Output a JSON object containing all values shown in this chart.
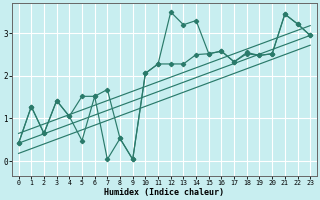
{
  "xlabel": "Humidex (Indice chaleur)",
  "bg_color": "#c8eef0",
  "grid_color": "#ffffff",
  "line_color": "#2a7a6a",
  "xlim": [
    -0.5,
    23.5
  ],
  "ylim": [
    -0.35,
    3.7
  ],
  "yticks": [
    0,
    1,
    2,
    3
  ],
  "xticks": [
    0,
    1,
    2,
    3,
    4,
    5,
    6,
    7,
    8,
    9,
    10,
    11,
    12,
    13,
    14,
    15,
    16,
    17,
    18,
    19,
    20,
    21,
    22,
    23
  ],
  "line1_x": [
    0,
    1,
    2,
    3,
    4,
    5,
    6,
    7,
    8,
    9,
    10,
    11,
    12,
    13,
    14,
    15,
    16,
    17,
    18,
    19,
    20,
    21,
    22,
    23
  ],
  "line1_y": [
    0.42,
    1.28,
    0.65,
    1.42,
    1.05,
    0.48,
    1.52,
    0.04,
    0.53,
    0.04,
    2.06,
    2.28,
    3.5,
    3.2,
    3.3,
    2.52,
    2.58,
    2.33,
    2.55,
    2.48,
    2.52,
    3.45,
    3.22,
    2.95
  ],
  "line2_x": [
    0,
    1,
    2,
    3,
    4,
    5,
    6,
    7,
    8,
    9,
    10,
    11,
    12,
    13,
    14,
    15,
    16,
    17,
    18,
    19,
    20,
    21,
    22,
    23
  ],
  "line2_y": [
    0.42,
    1.28,
    0.65,
    1.42,
    1.05,
    1.52,
    1.52,
    1.68,
    0.53,
    0.04,
    2.06,
    2.28,
    2.28,
    2.28,
    2.5,
    2.52,
    2.58,
    2.33,
    2.52,
    2.48,
    2.52,
    3.45,
    3.22,
    2.95
  ],
  "line3_x": [
    0,
    23
  ],
  "line3_y": [
    0.42,
    2.95
  ],
  "line4_x": [
    0,
    23
  ],
  "line4_y": [
    0.18,
    2.72
  ],
  "line5_x": [
    0,
    23
  ],
  "line5_y": [
    0.65,
    3.18
  ]
}
